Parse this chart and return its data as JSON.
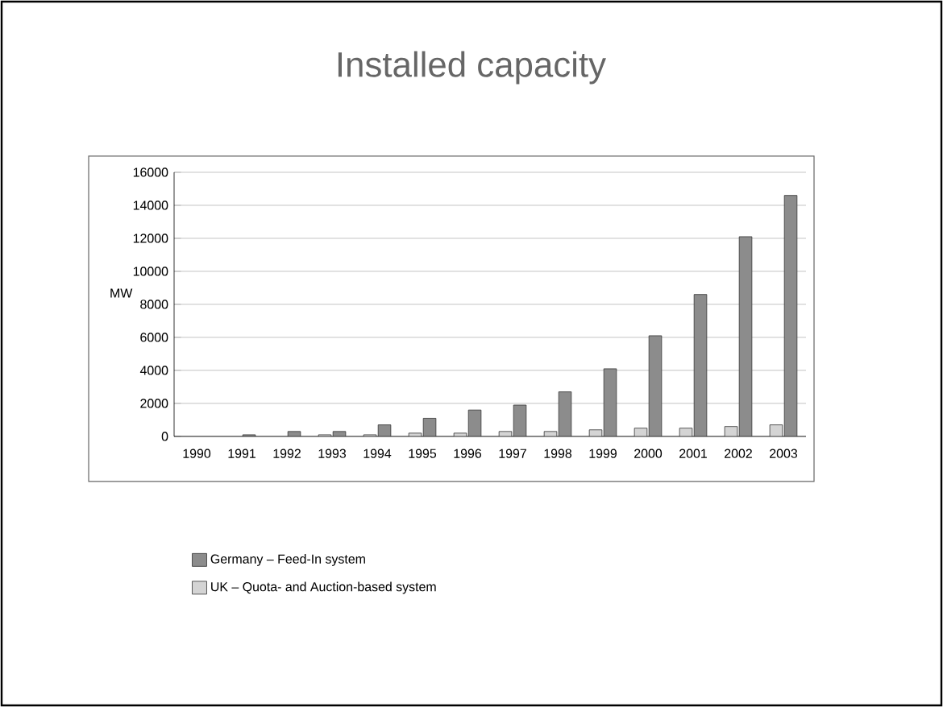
{
  "chart_data": {
    "type": "bar",
    "title": "Installed capacity",
    "ylabel": "MW",
    "categories": [
      "1990",
      "1991",
      "1992",
      "1993",
      "1994",
      "1995",
      "1996",
      "1997",
      "1998",
      "1999",
      "2000",
      "2001",
      "2002",
      "2003"
    ],
    "series": [
      {
        "name": "Germany – Feed-In system",
        "color": "#8c8c8c",
        "values": [
          null,
          100,
          300,
          300,
          700,
          1100,
          1600,
          1900,
          2700,
          4100,
          6100,
          8600,
          12100,
          14600
        ]
      },
      {
        "name": "UK – Quota- and Auction-based system",
        "color": "#d4d4d4",
        "values": [
          null,
          null,
          null,
          100,
          100,
          200,
          200,
          300,
          300,
          400,
          500,
          500,
          600,
          700
        ]
      }
    ],
    "ylim": [
      0,
      16000
    ],
    "yticks": [
      0,
      2000,
      4000,
      6000,
      8000,
      10000,
      12000,
      14000,
      16000
    ],
    "grid": "y",
    "legend": "bottom left"
  }
}
